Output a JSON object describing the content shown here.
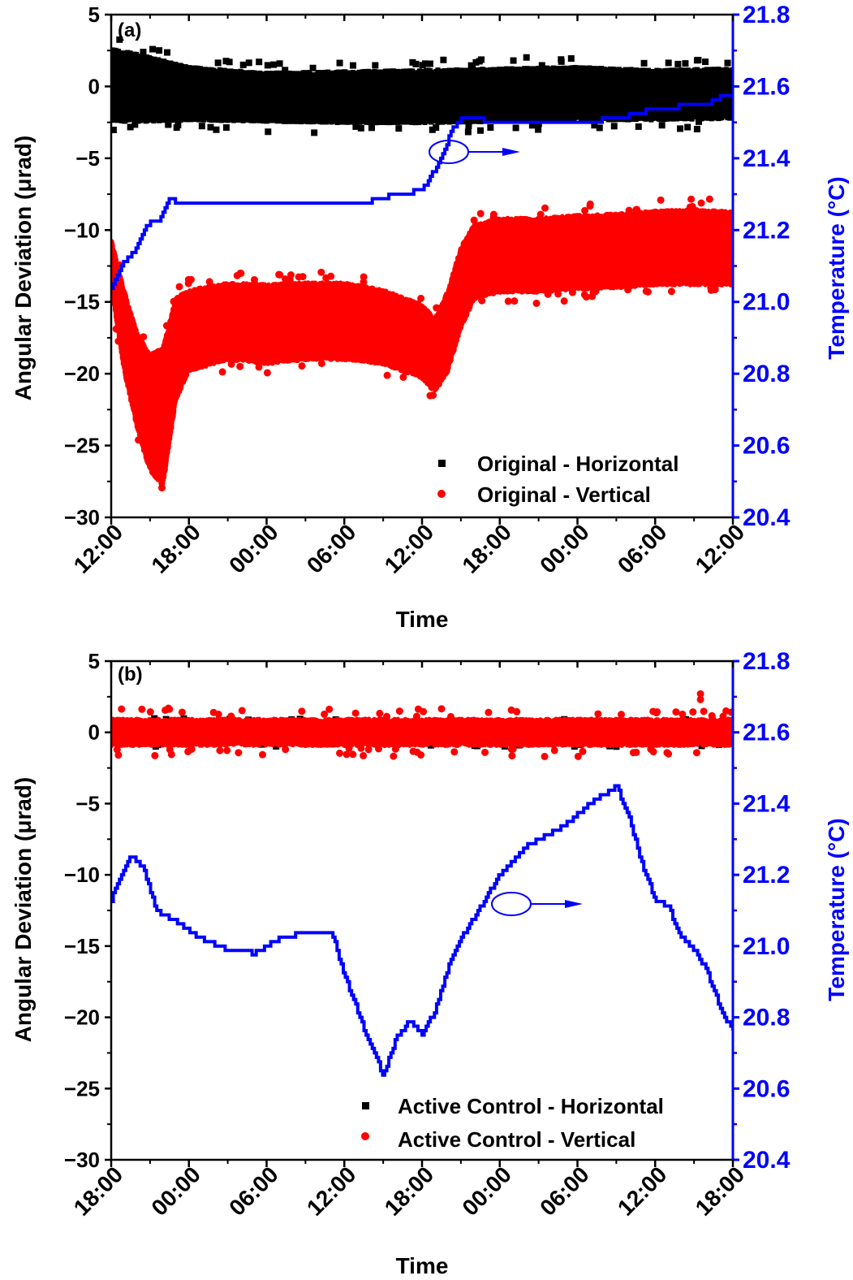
{
  "chart_data": [
    {
      "type": "scatter",
      "panel_label": "(a)",
      "title": "",
      "xlabel": "Time",
      "ylabel": "Angular Deviation (μrad)",
      "y2label": "Temperature (°C)",
      "x_ticks": [
        "12:00",
        "18:00",
        "00:00",
        "06:00",
        "12:00",
        "18:00",
        "00:00",
        "06:00",
        "12:00"
      ],
      "y_ticks": [
        "5",
        "0",
        "−5",
        "−10",
        "−15",
        "−20",
        "−25",
        "−30"
      ],
      "y2_ticks": [
        "21.8",
        "21.6",
        "21.4",
        "21.2",
        "21.0",
        "20.8",
        "20.6",
        "20.4"
      ],
      "ylim": [
        -30,
        5
      ],
      "y2lim": [
        20.4,
        21.8
      ],
      "legend_position": "lower right",
      "annotation": "ellipse with arrow pointing right (temperature curve uses right axis)",
      "series": [
        {
          "name": "Original - Horizontal",
          "marker": "square",
          "color": "#000000",
          "axis": "left",
          "x_hours": [
            0,
            3,
            6,
            12,
            18,
            24,
            30,
            36,
            42,
            48
          ],
          "center": [
            0.3,
            0.0,
            -0.3,
            -0.5,
            -0.5,
            -0.5,
            -0.6,
            -0.6,
            -0.5,
            -0.4
          ],
          "upper": [
            2.8,
            2.2,
            1.5,
            1.1,
            1.2,
            1.3,
            1.4,
            1.5,
            1.3,
            1.4
          ],
          "lower": [
            -2.6,
            -2.6,
            -2.5,
            -2.6,
            -2.7,
            -2.7,
            -2.6,
            -2.5,
            -2.5,
            -2.4
          ]
        },
        {
          "name": "Original - Vertical",
          "marker": "circle",
          "color": "#ff0000",
          "axis": "left",
          "x_hours": [
            0,
            1,
            2,
            3,
            4,
            5,
            6,
            9,
            12,
            15,
            18,
            21,
            24,
            25,
            26,
            27,
            28,
            30,
            33,
            36,
            39,
            42,
            45,
            48
          ],
          "center": [
            -12,
            -17,
            -20,
            -22,
            -23,
            -18,
            -17,
            -16.5,
            -16.3,
            -16.2,
            -16.2,
            -16.5,
            -18,
            -19,
            -17,
            -14,
            -12.5,
            -11.5,
            -11.5,
            -11.2,
            -11,
            -11,
            -10.8,
            -11
          ],
          "upper": [
            -10.5,
            -14,
            -17,
            -18.5,
            -18,
            -14.5,
            -14,
            -13.5,
            -13.6,
            -13.5,
            -13.5,
            -14,
            -15,
            -16,
            -14,
            -11,
            -9.5,
            -9,
            -9,
            -8.8,
            -8.7,
            -8.5,
            -8.4,
            -8.5
          ],
          "lower": [
            -14,
            -20,
            -24,
            -27,
            -28,
            -22,
            -20,
            -19.2,
            -19.5,
            -19.2,
            -19.2,
            -19.5,
            -20.5,
            -21.5,
            -20,
            -17,
            -15,
            -14.5,
            -14.5,
            -14.3,
            -14.2,
            -14,
            -14,
            -14
          ]
        },
        {
          "name": "Temperature",
          "type": "line-step",
          "color": "#0000ff",
          "axis": "right",
          "x_hours": [
            0,
            0.5,
            1,
            1.5,
            2,
            2.5,
            3,
            3.5,
            4,
            4.5,
            5,
            5.5,
            6,
            10,
            14,
            18,
            20,
            22,
            24,
            24.5,
            25,
            25.5,
            26,
            26.5,
            27,
            28,
            30,
            33,
            36,
            39,
            41,
            43,
            45,
            46,
            47,
            48
          ],
          "values": [
            21.04,
            21.08,
            21.11,
            21.13,
            21.15,
            21.2,
            21.22,
            21.22,
            21.25,
            21.29,
            21.28,
            21.27,
            21.27,
            21.27,
            21.27,
            21.28,
            21.28,
            21.3,
            21.31,
            21.34,
            21.37,
            21.41,
            21.45,
            21.49,
            21.51,
            21.51,
            21.5,
            21.5,
            21.5,
            21.51,
            21.53,
            21.54,
            21.55,
            21.55,
            21.57,
            21.57
          ]
        }
      ]
    },
    {
      "type": "scatter",
      "panel_label": "(b)",
      "title": "",
      "xlabel": "Time",
      "ylabel": "Angular Deviation (μrad)",
      "y2label": "Temperature (°C)",
      "x_ticks": [
        "18:00",
        "00:00",
        "06:00",
        "12:00",
        "18:00",
        "00:00",
        "06:00",
        "12:00",
        "18:00"
      ],
      "y_ticks": [
        "5",
        "0",
        "−5",
        "−10",
        "−15",
        "−20",
        "−25",
        "−30"
      ],
      "y2_ticks": [
        "21.8",
        "21.6",
        "21.4",
        "21.2",
        "21.0",
        "20.8",
        "20.6",
        "20.4"
      ],
      "ylim": [
        -30,
        5
      ],
      "y2lim": [
        20.4,
        21.8
      ],
      "legend_position": "lower right",
      "annotation": "ellipse with arrow pointing right (temperature curve uses right axis)",
      "series": [
        {
          "name": "Active Control - Horizontal",
          "marker": "square",
          "color": "#000000",
          "axis": "left",
          "center": 0.0,
          "upper": 0.4,
          "lower": -0.4,
          "outliers": [
            [
              45.5,
              0.6
            ]
          ]
        },
        {
          "name": "Active Control - Vertical",
          "marker": "circle",
          "color": "#ff0000",
          "axis": "left",
          "center": 0.0,
          "upper": 1.1,
          "lower": -1.1,
          "outliers": [
            [
              45.5,
              2.7
            ],
            [
              45.5,
              2.3
            ]
          ]
        },
        {
          "name": "Temperature",
          "type": "line-step",
          "color": "#0000ff",
          "axis": "right",
          "x_hours": [
            0,
            1,
            1.5,
            2.5,
            3.5,
            5,
            7,
            9,
            11,
            13,
            15,
            17,
            18,
            19,
            20,
            21,
            22,
            23,
            24,
            25,
            26,
            27,
            28,
            29,
            30,
            31,
            32,
            33,
            35,
            37,
            39,
            40,
            41,
            42,
            43,
            44,
            45,
            46,
            47,
            48
          ],
          "values": [
            21.13,
            21.22,
            21.26,
            21.22,
            21.1,
            21.07,
            21.02,
            20.99,
            20.98,
            21.02,
            21.04,
            21.04,
            20.92,
            20.82,
            20.72,
            20.64,
            20.74,
            20.79,
            20.75,
            20.82,
            20.94,
            21.02,
            21.08,
            21.14,
            21.2,
            21.24,
            21.28,
            21.3,
            21.34,
            21.4,
            21.45,
            21.36,
            21.23,
            21.13,
            21.11,
            21.03,
            20.99,
            20.93,
            20.83,
            20.76
          ]
        }
      ]
    }
  ],
  "panel_a": {
    "label": "(a)",
    "ylabel": "Angular Deviation (μrad)",
    "y2label": "Temperature (°C)",
    "xlabel": "Time",
    "legend": [
      "Original - Horizontal",
      "Original - Vertical"
    ]
  },
  "panel_b": {
    "label": "(b)",
    "ylabel": "Angular Deviation (μrad)",
    "y2label": "Temperature (°C)",
    "xlabel": "Time",
    "legend": [
      "Active Control - Horizontal",
      "Active Control - Vertical"
    ]
  },
  "colors": {
    "horizontal": "#000000",
    "vertical": "#ff0000",
    "temperature": "#0000ff",
    "axis": "#000000"
  }
}
